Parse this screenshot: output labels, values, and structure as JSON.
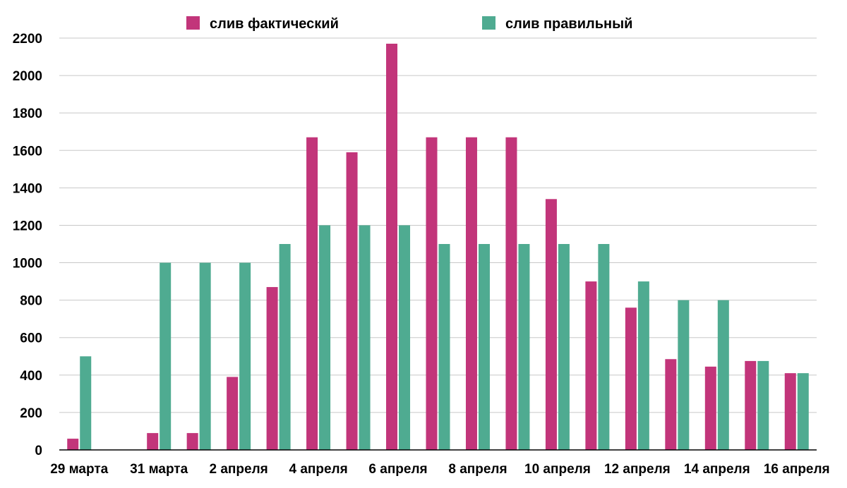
{
  "chart_data": {
    "type": "bar",
    "title": "",
    "xlabel": "",
    "ylabel": "",
    "ylim": [
      0,
      2200
    ],
    "yticks": [
      0,
      200,
      400,
      600,
      800,
      1000,
      1200,
      1400,
      1600,
      1800,
      2000,
      2200
    ],
    "grid": true,
    "legend_position": "top",
    "categories": [
      "29 марта",
      "30 марта",
      "31 марта",
      "1 апреля",
      "2 апреля",
      "3 апреля",
      "4 апреля",
      "5 апреля",
      "6 апреля",
      "7 апреля",
      "8 апреля",
      "9 апреля",
      "10 апреля",
      "11 апреля",
      "12 апреля",
      "13 апреля",
      "14 апреля",
      "15 апреля",
      "16 апреля"
    ],
    "xtick_labels": [
      "29 марта",
      "",
      "31 марта",
      "",
      "2 апреля",
      "",
      "4 апреля",
      "",
      "6 апреля",
      "",
      "8 апреля",
      "",
      "10 апреля",
      "",
      "12 апреля",
      "",
      "14 апреля",
      "",
      "16 апреля"
    ],
    "series": [
      {
        "name": "слив фактический",
        "color": "#c2357a",
        "values": [
          60,
          0,
          90,
          90,
          390,
          870,
          1670,
          1590,
          2170,
          1670,
          1670,
          1670,
          1340,
          900,
          760,
          485,
          445,
          475,
          410
        ]
      },
      {
        "name": "слив правильный",
        "color": "#4fab91",
        "values": [
          500,
          0,
          1000,
          1000,
          1000,
          1100,
          1200,
          1200,
          1200,
          1100,
          1100,
          1100,
          1100,
          1100,
          900,
          800,
          800,
          475,
          410
        ]
      }
    ]
  }
}
